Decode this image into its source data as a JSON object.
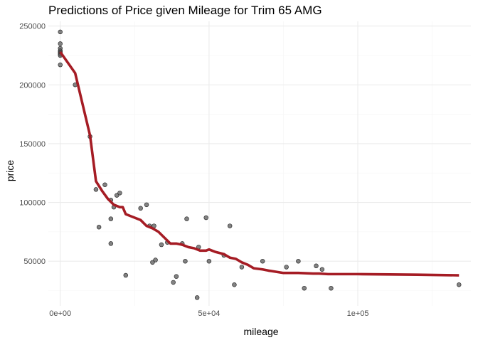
{
  "chart_data": {
    "type": "scatter",
    "title": "Predictions of Price given Mileage for Trim 65 AMG",
    "xlabel": "mileage",
    "ylabel": "price",
    "xlim": [
      -4000,
      138000
    ],
    "ylim": [
      12000,
      254000
    ],
    "x_ticks": [
      {
        "value": 0,
        "label": "0e+00"
      },
      {
        "value": 50000,
        "label": "5e+04"
      },
      {
        "value": 100000,
        "label": "1e+05"
      }
    ],
    "x_minor_ticks": [
      25000,
      75000,
      125000
    ],
    "y_ticks": [
      {
        "value": 50000,
        "label": "50000"
      },
      {
        "value": 100000,
        "label": "100000"
      },
      {
        "value": 150000,
        "label": "150000"
      },
      {
        "value": 200000,
        "label": "200000"
      },
      {
        "value": 250000,
        "label": "250000"
      }
    ],
    "y_minor_ticks": [
      25000,
      75000,
      125000,
      175000,
      225000
    ],
    "grid": true,
    "colors": {
      "points": "#595959",
      "points_fill_opacity": 0.75,
      "line": "#a51c24",
      "major_grid": "#ebebeb",
      "minor_grid": "#f5f5f5"
    },
    "series": [
      {
        "type": "scatter",
        "points": [
          [
            0,
            245000
          ],
          [
            0,
            235000
          ],
          [
            0,
            231000
          ],
          [
            0,
            229000
          ],
          [
            0,
            228000
          ],
          [
            0,
            227000
          ],
          [
            0,
            226000
          ],
          [
            0,
            225000
          ],
          [
            0,
            217000
          ],
          [
            5000,
            200000
          ],
          [
            10000,
            156000
          ],
          [
            12000,
            111000
          ],
          [
            13000,
            79000
          ],
          [
            15000,
            115000
          ],
          [
            17000,
            102000
          ],
          [
            17000,
            86000
          ],
          [
            17000,
            65000
          ],
          [
            18000,
            96000
          ],
          [
            19000,
            106000
          ],
          [
            20000,
            108000
          ],
          [
            22000,
            38000
          ],
          [
            27000,
            95000
          ],
          [
            29000,
            98000
          ],
          [
            30000,
            80000
          ],
          [
            31000,
            49000
          ],
          [
            31500,
            80000
          ],
          [
            32000,
            51000
          ],
          [
            34000,
            64000
          ],
          [
            36000,
            66000
          ],
          [
            38000,
            32000
          ],
          [
            39000,
            37000
          ],
          [
            41000,
            65000
          ],
          [
            42000,
            50000
          ],
          [
            42500,
            86000
          ],
          [
            46000,
            19000
          ],
          [
            46500,
            62000
          ],
          [
            49000,
            87000
          ],
          [
            50000,
            50000
          ],
          [
            55000,
            55000
          ],
          [
            57000,
            80000
          ],
          [
            58500,
            30000
          ],
          [
            61000,
            45000
          ],
          [
            68000,
            50000
          ],
          [
            76000,
            45000
          ],
          [
            80000,
            50000
          ],
          [
            82000,
            27000
          ],
          [
            86000,
            46000
          ],
          [
            88000,
            43000
          ],
          [
            91000,
            27000
          ],
          [
            134000,
            30000
          ]
        ]
      },
      {
        "type": "line",
        "points": [
          [
            0,
            228000
          ],
          [
            5000,
            210000
          ],
          [
            10000,
            157000
          ],
          [
            12000,
            118000
          ],
          [
            14000,
            110000
          ],
          [
            16000,
            103000
          ],
          [
            18000,
            98000
          ],
          [
            20000,
            96000
          ],
          [
            21000,
            96000
          ],
          [
            22000,
            90000
          ],
          [
            24000,
            88000
          ],
          [
            27000,
            85000
          ],
          [
            29000,
            80000
          ],
          [
            31000,
            78000
          ],
          [
            33000,
            75000
          ],
          [
            35000,
            70000
          ],
          [
            37000,
            65000
          ],
          [
            39000,
            65000
          ],
          [
            41000,
            64000
          ],
          [
            43000,
            62000
          ],
          [
            45000,
            61000
          ],
          [
            47000,
            59000
          ],
          [
            49000,
            59000
          ],
          [
            50000,
            60000
          ],
          [
            52000,
            58000
          ],
          [
            55000,
            56000
          ],
          [
            57000,
            53000
          ],
          [
            59000,
            52000
          ],
          [
            61000,
            49000
          ],
          [
            63000,
            47000
          ],
          [
            65000,
            44000
          ],
          [
            68000,
            43000
          ],
          [
            70000,
            42000
          ],
          [
            75000,
            40000
          ],
          [
            80000,
            40000
          ],
          [
            85000,
            39500
          ],
          [
            87000,
            39500
          ],
          [
            90000,
            39000
          ],
          [
            100000,
            39000
          ],
          [
            120000,
            38500
          ],
          [
            134000,
            38000
          ]
        ]
      }
    ]
  }
}
